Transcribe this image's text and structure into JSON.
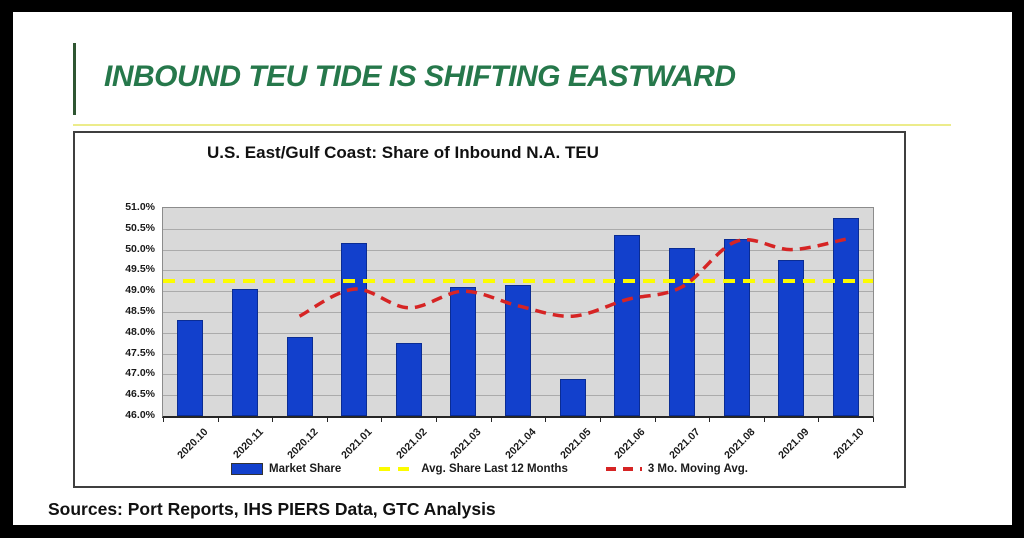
{
  "slide": {
    "title": "INBOUND TEU TIDE IS SHIFTING EASTWARD",
    "source_note": "Sources: Port Reports, IHS PIERS Data, GTC Analysis"
  },
  "colors": {
    "title_green": "#26784b",
    "accent_bar_green": "#2f5632",
    "divider_yellow": "#ecec8b",
    "bar_blue": "#1240cc",
    "bar_border_blue": "#0a2c94",
    "avg_line_yellow": "#fcfc00",
    "moving_avg_red": "#d62424",
    "plot_background": "#d9d9d9",
    "gridline_gray": "#ababab"
  },
  "chart_data": {
    "type": "bar",
    "title": "U.S. East/Gulf Coast: Share of Inbound N.A. TEU",
    "categories": [
      "2020.10",
      "2020.11",
      "2020.12",
      "2021.01",
      "2021.02",
      "2021.03",
      "2021.04",
      "2021.05",
      "2021.06",
      "2021.07",
      "2021.08",
      "2021.09",
      "2021.10"
    ],
    "series": [
      {
        "name": "Market Share",
        "type": "bar",
        "values": [
          48.3,
          49.05,
          47.9,
          50.15,
          47.75,
          49.1,
          49.15,
          46.9,
          50.35,
          50.05,
          50.25,
          49.75,
          50.75
        ]
      },
      {
        "name": "Avg. Share Last 12 Months",
        "type": "hline",
        "style": "dashed",
        "value": 49.25
      },
      {
        "name": "3 Mo. Moving Avg.",
        "type": "line",
        "style": "dashed",
        "values": [
          null,
          null,
          48.4,
          49.05,
          48.6,
          49.0,
          48.65,
          48.4,
          48.8,
          49.1,
          50.2,
          50.0,
          50.25
        ]
      }
    ],
    "ylim": [
      46.0,
      51.0
    ],
    "ytick_step": 0.5,
    "ytick_labels": [
      "51.0%",
      "50.5%",
      "50.0%",
      "49.5%",
      "49.0%",
      "48.5%",
      "48.0%",
      "47.5%",
      "47.0%",
      "46.5%",
      "46.0%"
    ],
    "grid": true,
    "legend_position": "bottom"
  }
}
